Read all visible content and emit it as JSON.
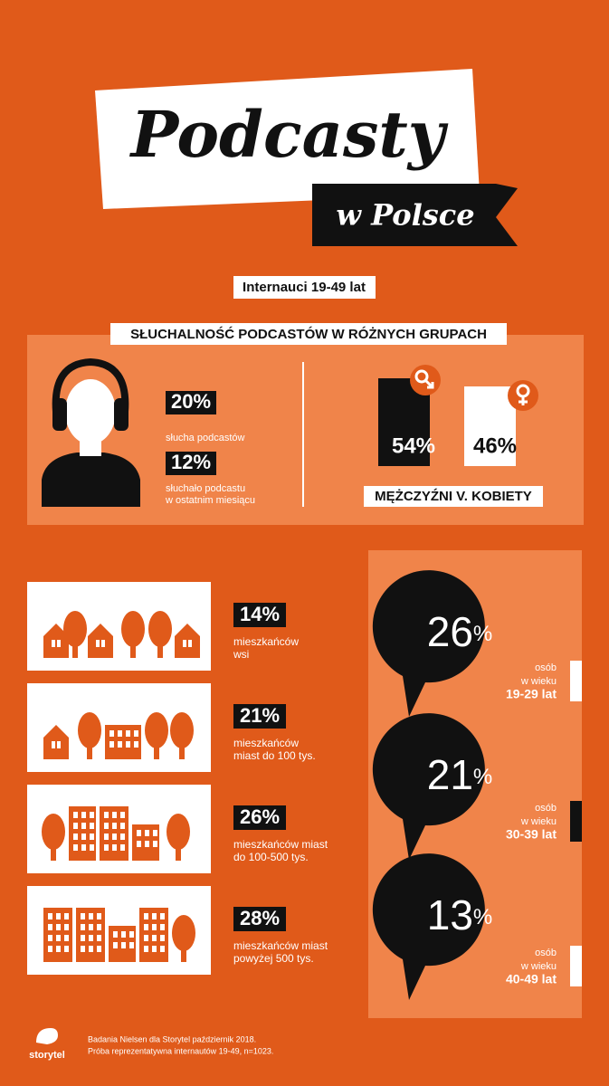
{
  "header": {
    "title": "Podcasty",
    "subtitle": "w Polsce"
  },
  "audience": "Internauci 19-49 lat",
  "section_title": "SŁUCHALNOŚĆ PODCASTÓW W RÓŻNYCH GRUPACH",
  "listening": [
    {
      "value": "20%",
      "label": [
        "słucha podcastów"
      ]
    },
    {
      "value": "12%",
      "label": [
        "słuchało podcastu",
        "w ostatnim miesiącu"
      ]
    }
  ],
  "gender": {
    "title": "MĘŻCZYŹNI V. KOBIETY",
    "men": "54%",
    "women": "46%"
  },
  "places": [
    {
      "value": "14%",
      "label": [
        "mieszkańców",
        "wsi"
      ]
    },
    {
      "value": "21%",
      "label": [
        "mieszkańców",
        "miast do 100 tys."
      ]
    },
    {
      "value": "26%",
      "label": [
        "mieszkańców miast",
        "do 100-500 tys."
      ]
    },
    {
      "value": "28%",
      "label": [
        "mieszkańców miast",
        "powyżej 500 tys."
      ]
    }
  ],
  "ages": [
    {
      "value": "26",
      "unit": "%",
      "label": [
        "osób",
        "w wieku",
        "19-29 lat"
      ]
    },
    {
      "value": "21",
      "unit": "%",
      "label": [
        "osób",
        "w wieku",
        "30-39 lat"
      ]
    },
    {
      "value": "13",
      "unit": "%",
      "label": [
        "osób",
        "w wieku",
        "40-49 lat"
      ]
    }
  ],
  "footer": {
    "logo": "storytel",
    "notes": [
      "Badania Nielsen dla Storytel październik 2018.",
      "Próba reprezentatywna internautów 19-49, n=1023."
    ]
  }
}
